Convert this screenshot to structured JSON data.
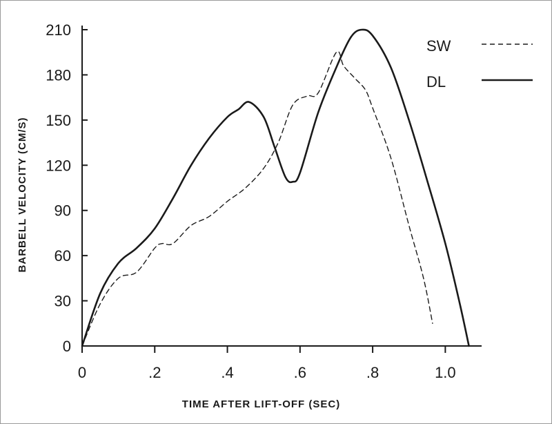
{
  "chart_data": {
    "type": "line",
    "xlabel": "TIME AFTER LIFT-OFF (SEC)",
    "ylabel": "BARBELL VELOCITY (CM/S)",
    "xlim": [
      0,
      1.1
    ],
    "ylim": [
      0,
      210
    ],
    "x_ticks": [
      {
        "value": 0,
        "label": "0"
      },
      {
        "value": 0.2,
        "label": ".2"
      },
      {
        "value": 0.4,
        "label": ".4"
      },
      {
        "value": 0.6,
        "label": ".6"
      },
      {
        "value": 0.8,
        "label": ".8"
      },
      {
        "value": 1.0,
        "label": "1.0"
      }
    ],
    "y_ticks": [
      {
        "value": 0,
        "label": "0"
      },
      {
        "value": 30,
        "label": "30"
      },
      {
        "value": 60,
        "label": "60"
      },
      {
        "value": 90,
        "label": "90"
      },
      {
        "value": 120,
        "label": "120"
      },
      {
        "value": 150,
        "label": "150"
      },
      {
        "value": 180,
        "label": "180"
      },
      {
        "value": 210,
        "label": "210"
      }
    ],
    "grid": false,
    "legend_position": "top-right",
    "series": [
      {
        "name": "SW",
        "style": "dashed",
        "color": "#1a1a1a",
        "points": [
          [
            0,
            0
          ],
          [
            0.05,
            28
          ],
          [
            0.1,
            45
          ],
          [
            0.15,
            49
          ],
          [
            0.2,
            65
          ],
          [
            0.22,
            68
          ],
          [
            0.25,
            68
          ],
          [
            0.3,
            80
          ],
          [
            0.35,
            86
          ],
          [
            0.4,
            96
          ],
          [
            0.45,
            105
          ],
          [
            0.5,
            118
          ],
          [
            0.54,
            135
          ],
          [
            0.58,
            160
          ],
          [
            0.62,
            166
          ],
          [
            0.65,
            168
          ],
          [
            0.7,
            195
          ],
          [
            0.72,
            186
          ],
          [
            0.75,
            178
          ],
          [
            0.78,
            170
          ],
          [
            0.8,
            158
          ],
          [
            0.85,
            125
          ],
          [
            0.9,
            80
          ],
          [
            0.94,
            45
          ],
          [
            0.965,
            15
          ]
        ]
      },
      {
        "name": "DL",
        "style": "solid",
        "color": "#1a1a1a",
        "points": [
          [
            0,
            0
          ],
          [
            0.05,
            35
          ],
          [
            0.1,
            55
          ],
          [
            0.15,
            65
          ],
          [
            0.2,
            78
          ],
          [
            0.25,
            98
          ],
          [
            0.3,
            120
          ],
          [
            0.35,
            138
          ],
          [
            0.4,
            152
          ],
          [
            0.43,
            157
          ],
          [
            0.46,
            162
          ],
          [
            0.5,
            152
          ],
          [
            0.53,
            132
          ],
          [
            0.56,
            112
          ],
          [
            0.58,
            109
          ],
          [
            0.6,
            115
          ],
          [
            0.65,
            155
          ],
          [
            0.7,
            185
          ],
          [
            0.74,
            205
          ],
          [
            0.77,
            210
          ],
          [
            0.8,
            206
          ],
          [
            0.85,
            185
          ],
          [
            0.9,
            150
          ],
          [
            0.95,
            110
          ],
          [
            1.0,
            68
          ],
          [
            1.04,
            28
          ],
          [
            1.065,
            0
          ]
        ]
      }
    ]
  }
}
